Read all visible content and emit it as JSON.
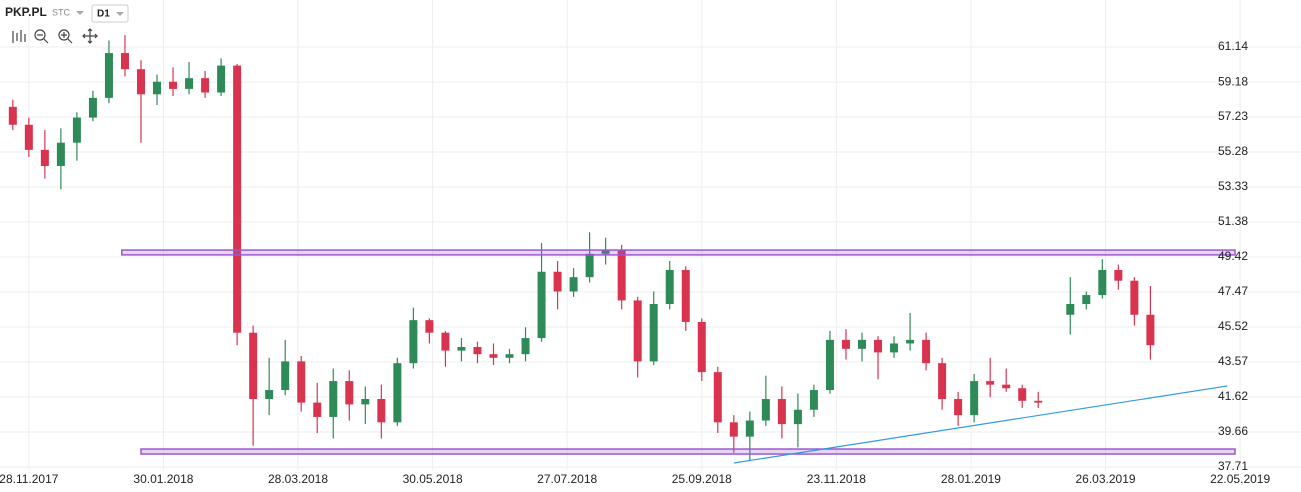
{
  "header": {
    "symbol": "PKP.PL",
    "mode": "STC",
    "interval": "D1"
  },
  "chart_data": {
    "type": "candlestick",
    "x": [
      -5,
      0,
      5,
      10,
      15,
      20,
      25,
      30,
      35,
      40,
      45,
      50,
      55,
      60,
      65,
      70,
      75,
      80,
      85,
      90,
      95,
      100,
      105,
      110,
      115,
      120,
      125,
      130,
      135,
      140,
      145,
      150,
      155,
      160,
      165,
      170,
      175,
      180,
      185,
      190,
      195,
      200,
      205,
      210,
      215,
      220,
      225,
      230,
      235,
      240,
      245,
      250,
      255,
      260,
      265,
      270,
      275,
      280,
      285,
      290,
      295,
      300,
      305,
      310,
      315,
      325,
      330,
      335,
      340,
      345,
      350
    ],
    "open": [
      57.8,
      56.8,
      55.4,
      54.5,
      55.8,
      57.2,
      58.3,
      60.8,
      59.9,
      58.5,
      59.2,
      58.8,
      59.4,
      58.6,
      60.1,
      45.2,
      41.5,
      42,
      43.6,
      41.3,
      40.5,
      42.5,
      41.2,
      41.5,
      40.2,
      43.5,
      45.9,
      45.2,
      44.2,
      44.4,
      44,
      43.8,
      44,
      44.9,
      48.6,
      47.5,
      48.3,
      49.6,
      49.8,
      47,
      43.6,
      46.8,
      48.7,
      45.8,
      43,
      40.2,
      39.4,
      40.3,
      41.5,
      40.1,
      40.9,
      42,
      44.8,
      44.3,
      44.8,
      44.1,
      44.6,
      44.8,
      43.5,
      41.5,
      40.6,
      42.5,
      42.3,
      42.1,
      41.4,
      46.2,
      46.8,
      47.3,
      48.7,
      48.1,
      46.2
    ],
    "high": [
      58.2,
      57.2,
      56.5,
      56.6,
      57.5,
      58.7,
      61.5,
      61.8,
      60.4,
      59.6,
      60,
      60.3,
      59.8,
      60.5,
      60.2,
      45.6,
      43.8,
      44.8,
      43.9,
      42.4,
      43.2,
      43.1,
      42.2,
      42.3,
      43.8,
      46.6,
      46,
      45.3,
      44.9,
      44.7,
      44.6,
      44.3,
      45.5,
      50.2,
      49.2,
      48.8,
      50.8,
      50.5,
      50.1,
      47.2,
      47.5,
      49.2,
      48.9,
      46,
      43.3,
      40.6,
      40.8,
      42.8,
      42.2,
      41.8,
      42.3,
      45.3,
      45.4,
      45.2,
      45,
      45,
      46.3,
      45.2,
      43.8,
      41.9,
      42.9,
      43.8,
      43.2,
      42.3,
      41.9,
      48.3,
      47.5,
      49.3,
      49,
      48.3,
      47.8
    ],
    "low": [
      56.5,
      55,
      53.8,
      53.2,
      54.8,
      57,
      58,
      59.5,
      55.8,
      57.9,
      58.4,
      58.5,
      58.3,
      58.4,
      44.5,
      38.9,
      40.6,
      41.7,
      40.8,
      39.6,
      39.3,
      40.3,
      40.1,
      39.3,
      40,
      43.2,
      44.6,
      43.3,
      43.6,
      43.5,
      43.4,
      43.5,
      43.6,
      44.7,
      46.5,
      47.2,
      48,
      49,
      46.5,
      42.7,
      43.4,
      46.5,
      45.3,
      42.5,
      39.6,
      38.5,
      38.1,
      40,
      39.3,
      38.8,
      40.5,
      41.8,
      43.7,
      43.6,
      42.6,
      43.8,
      44.2,
      43.1,
      40.9,
      40,
      40.2,
      41.6,
      41.9,
      41,
      41,
      45.1,
      46.5,
      47.1,
      47.6,
      45.6,
      43.7
    ],
    "close": [
      56.8,
      55.4,
      54.5,
      55.8,
      57.2,
      58.3,
      60.8,
      59.9,
      58.5,
      59.2,
      58.8,
      59.4,
      58.6,
      60.1,
      45.2,
      41.5,
      42,
      43.6,
      41.3,
      40.5,
      42.5,
      41.2,
      41.5,
      40.2,
      43.5,
      45.9,
      45.2,
      44.2,
      44.4,
      44,
      43.8,
      44,
      44.9,
      48.6,
      47.5,
      48.3,
      49.6,
      49.8,
      47,
      43.6,
      46.8,
      48.7,
      45.8,
      43,
      40.2,
      39.4,
      40.3,
      41.5,
      40.1,
      40.9,
      42,
      44.8,
      44.3,
      44.8,
      44.1,
      44.6,
      44.8,
      43.5,
      41.5,
      40.6,
      42.5,
      42.3,
      42.1,
      41.4,
      41.3,
      46.8,
      47.3,
      48.7,
      48.1,
      46.2,
      44.5
    ],
    "up_color": "#2e8b57",
    "down_color": "#d9344f",
    "xlim": [
      -9,
      397
    ],
    "xticks": [
      {
        "value": 0,
        "label": "28.11.2017"
      },
      {
        "value": 42,
        "label": "30.01.2018"
      },
      {
        "value": 84,
        "label": "28.03.2018"
      },
      {
        "value": 126,
        "label": "30.05.2018"
      },
      {
        "value": 168,
        "label": "27.07.2018"
      },
      {
        "value": 210,
        "label": "25.09.2018"
      },
      {
        "value": 252,
        "label": "23.11.2018"
      },
      {
        "value": 294,
        "label": "28.01.2019"
      },
      {
        "value": 336,
        "label": "26.03.2019"
      },
      {
        "value": 378,
        "label": "22.05.2019"
      }
    ],
    "ylim": [
      37.54,
      63.76
    ],
    "yticks": [
      37.71,
      39.66,
      41.62,
      43.57,
      45.52,
      47.47,
      49.42,
      51.38,
      53.33,
      55.28,
      57.23,
      59.18,
      61.14
    ],
    "grid": true,
    "zones": [
      {
        "low": 49.54,
        "high": 49.81,
        "start": 29,
        "color": "#9b59d0"
      },
      {
        "low": 38.43,
        "high": 38.71,
        "start": 35,
        "color": "#9b59d0"
      }
    ],
    "trendline": {
      "x": [
        220,
        374
      ],
      "y": [
        37.93,
        42.23
      ],
      "color": "#2f9be0"
    }
  }
}
